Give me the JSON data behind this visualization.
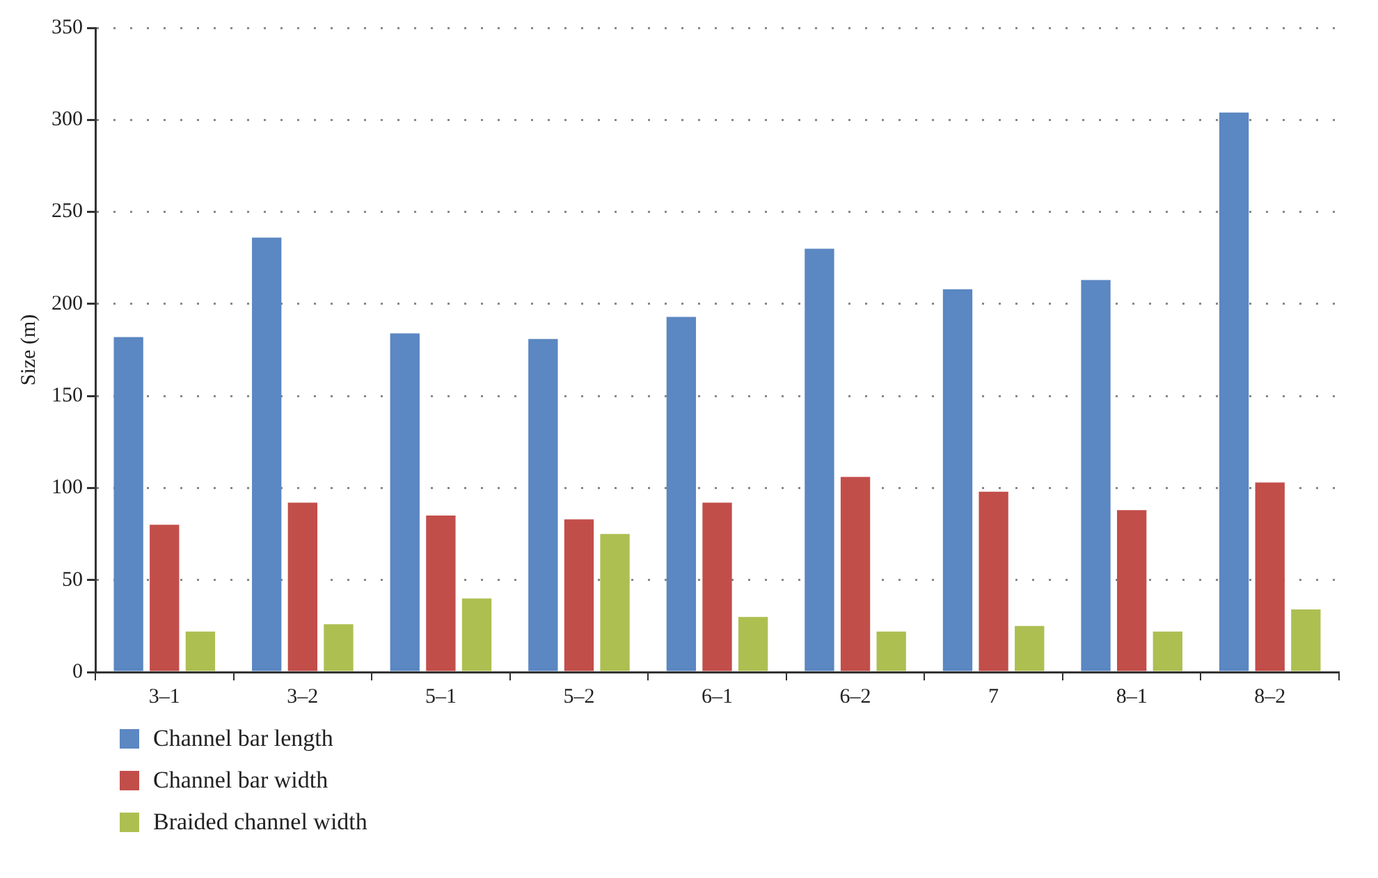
{
  "chart_data": {
    "type": "bar",
    "ylabel": "Size (m)",
    "categories": [
      "3–1",
      "3–2",
      "5–1",
      "5–2",
      "6–1",
      "6–2",
      "7",
      "8–1",
      "8–2"
    ],
    "series": [
      {
        "name": "Channel bar length",
        "color": "#5b87c2",
        "values": [
          182,
          236,
          184,
          181,
          193,
          230,
          208,
          213,
          304
        ]
      },
      {
        "name": "Channel bar width",
        "color": "#c24e4a",
        "values": [
          80,
          92,
          85,
          83,
          92,
          106,
          98,
          88,
          103
        ]
      },
      {
        "name": "Braided channel width",
        "color": "#adbf51",
        "values": [
          22,
          26,
          40,
          75,
          30,
          22,
          25,
          22,
          34
        ]
      }
    ],
    "ylim": [
      0,
      350
    ],
    "yticks": [
      0,
      50,
      100,
      150,
      200,
      250,
      300,
      350
    ],
    "grid": "y",
    "legend": "bottom left"
  }
}
